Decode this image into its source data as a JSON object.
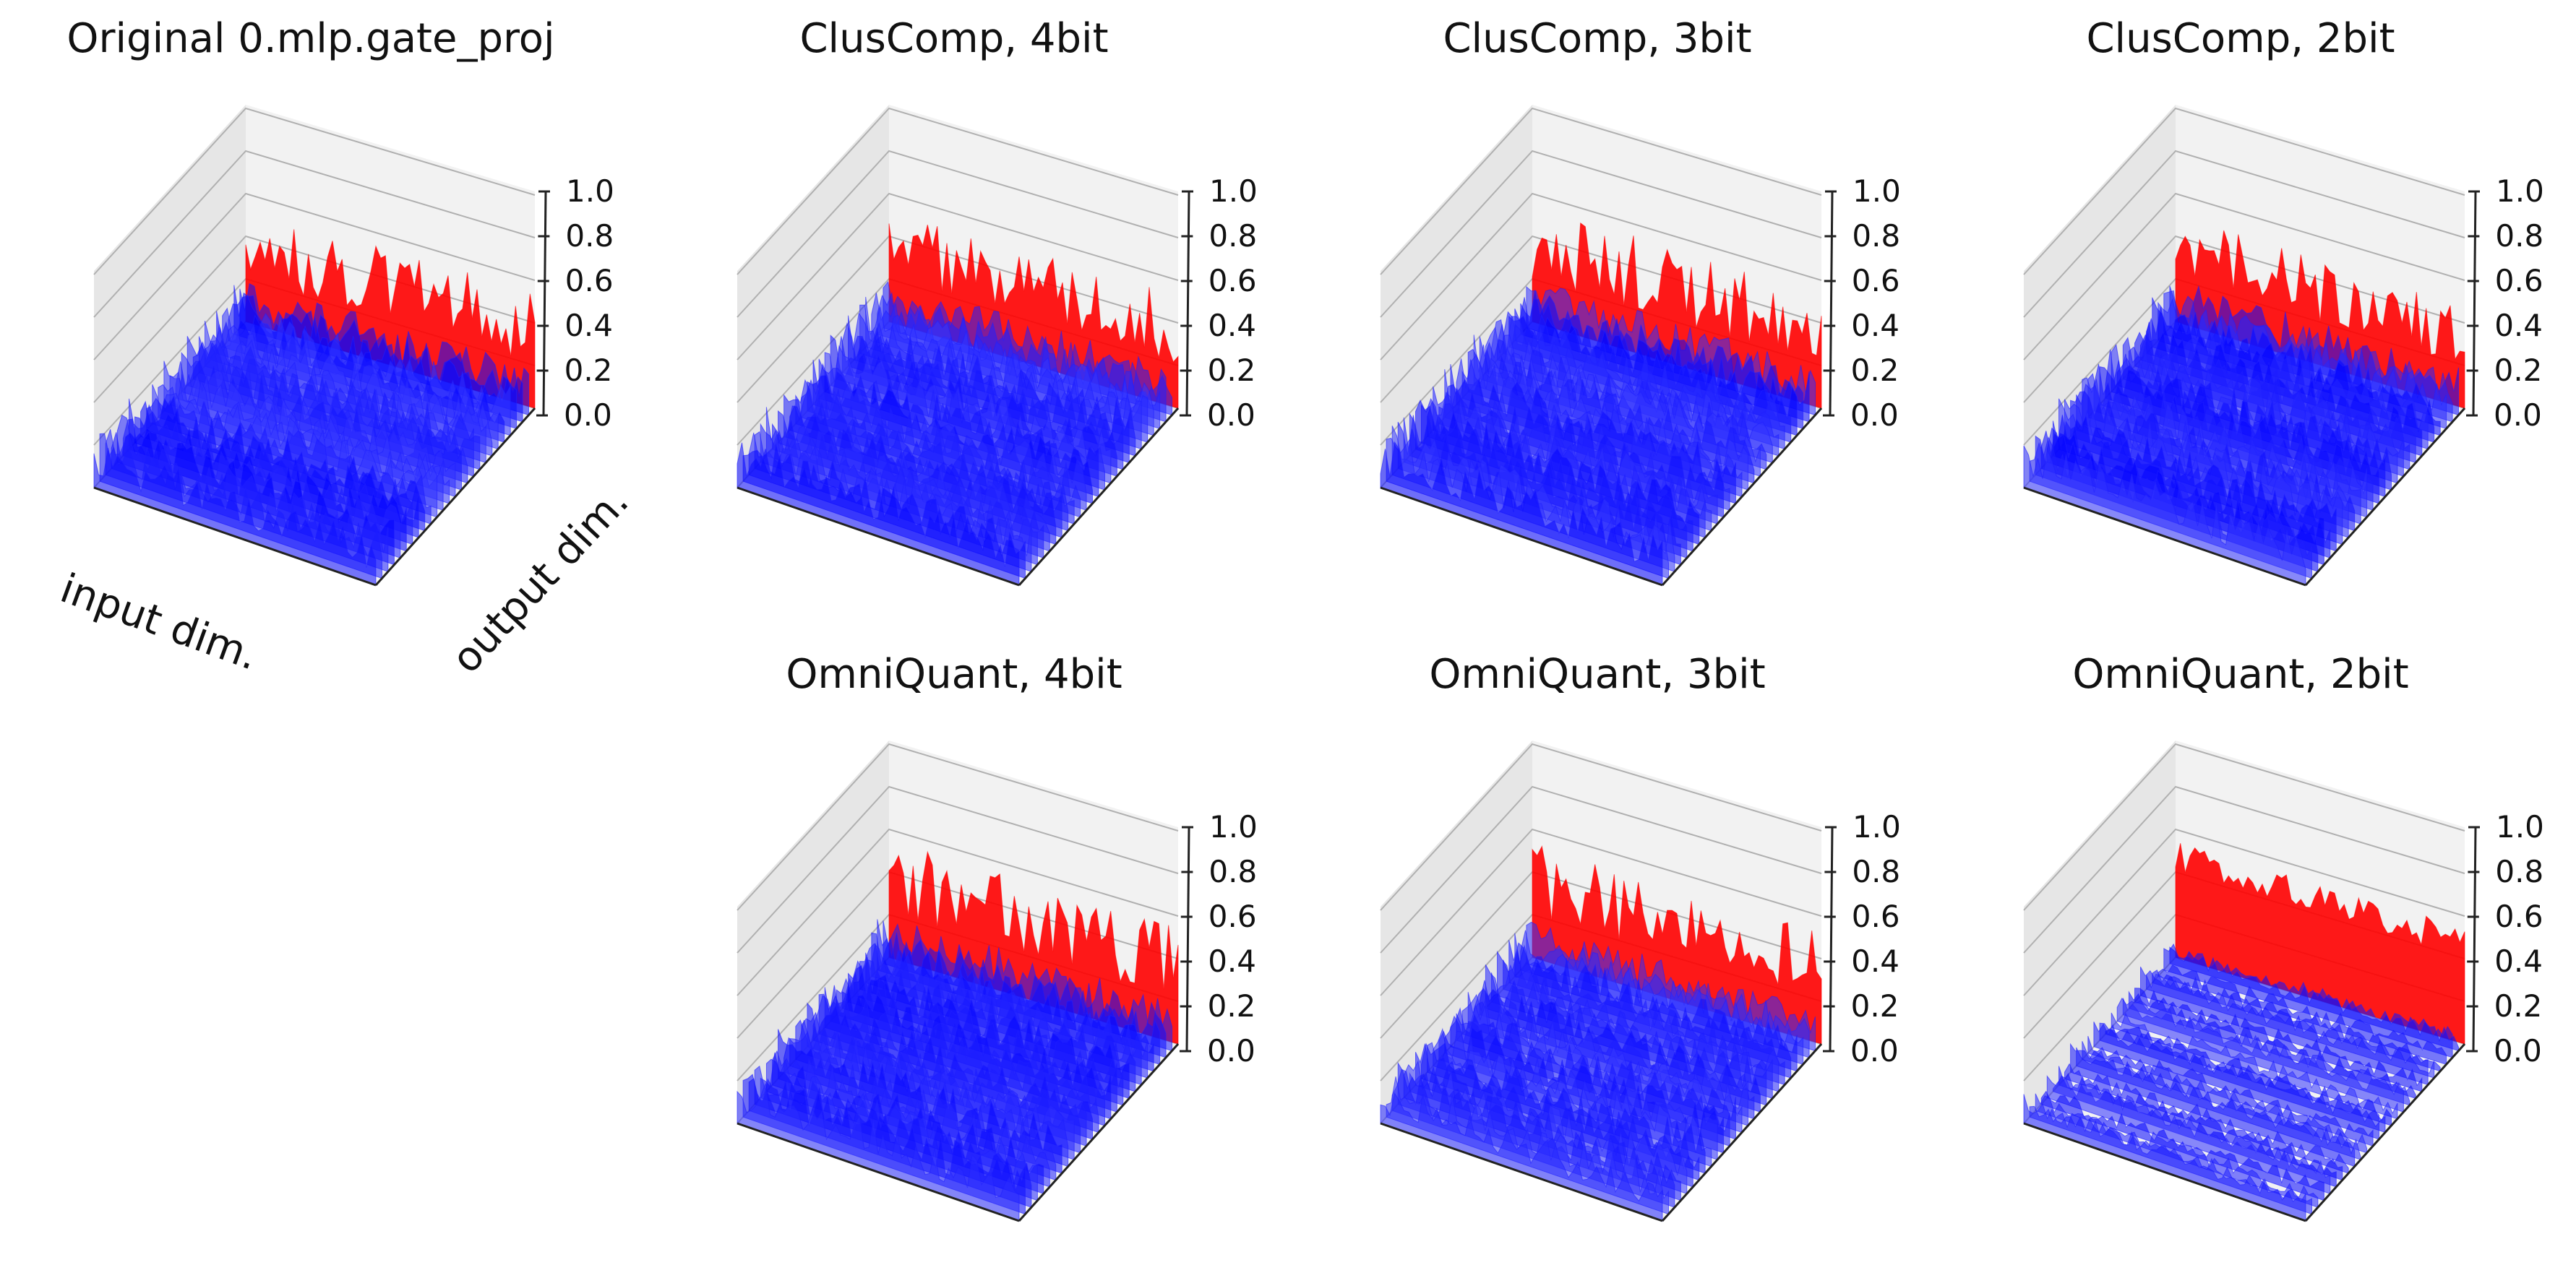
{
  "figure": {
    "colors": {
      "surface_low": "#0000ff",
      "surface_high": "#ff0000",
      "pane": "#f2f2f2",
      "pane_side": "#e6e6e6",
      "grid": "#b0b0b0"
    },
    "z_axis": {
      "range": [
        0.0,
        1.0
      ],
      "tick_labels": [
        "0.0",
        "0.2",
        "0.4",
        "0.6",
        "0.8",
        "1.0"
      ]
    },
    "axis_labels": {
      "x": "input dim.",
      "y": "output dim."
    }
  },
  "chart_data": [
    {
      "type": "surface3d",
      "title": "Original 0.mlp.gate_proj",
      "zlim": [
        0,
        1
      ],
      "zticks": [
        0.0,
        0.2,
        0.4,
        0.6,
        0.8,
        1.0
      ],
      "baseline_level": 0.15,
      "back_row_peak": 0.55,
      "noise": 0.09,
      "stripes": false,
      "xlabel": "input dim.",
      "ylabel": "output dim."
    },
    {
      "type": "surface3d",
      "title": "ClusComp, 4bit",
      "zlim": [
        0,
        1
      ],
      "zticks": [
        0.0,
        0.2,
        0.4,
        0.6,
        0.8,
        1.0
      ],
      "baseline_level": 0.15,
      "back_row_peak": 0.55,
      "noise": 0.09,
      "stripes": false
    },
    {
      "type": "surface3d",
      "title": "ClusComp, 3bit",
      "zlim": [
        0,
        1
      ],
      "zticks": [
        0.0,
        0.2,
        0.4,
        0.6,
        0.8,
        1.0
      ],
      "baseline_level": 0.15,
      "back_row_peak": 0.55,
      "noise": 0.09,
      "stripes": false
    },
    {
      "type": "surface3d",
      "title": "ClusComp, 2bit",
      "zlim": [
        0,
        1
      ],
      "zticks": [
        0.0,
        0.2,
        0.4,
        0.6,
        0.8,
        1.0
      ],
      "baseline_level": 0.15,
      "back_row_peak": 0.5,
      "noise": 0.09,
      "stripes": false
    },
    {
      "type": "surface3d",
      "title": "OmniQuant, 4bit",
      "zlim": [
        0,
        1
      ],
      "zticks": [
        0.0,
        0.2,
        0.4,
        0.6,
        0.8,
        1.0
      ],
      "baseline_level": 0.15,
      "back_row_peak": 0.55,
      "noise": 0.09,
      "stripes": false
    },
    {
      "type": "surface3d",
      "title": "OmniQuant, 3bit",
      "zlim": [
        0,
        1
      ],
      "zticks": [
        0.0,
        0.2,
        0.4,
        0.6,
        0.8,
        1.0
      ],
      "baseline_level": 0.13,
      "back_row_peak": 0.55,
      "noise": 0.08,
      "stripes": false
    },
    {
      "type": "surface3d",
      "title": "OmniQuant, 2bit",
      "zlim": [
        0,
        1
      ],
      "zticks": [
        0.0,
        0.2,
        0.4,
        0.6,
        0.8,
        1.0
      ],
      "baseline_level": 0.05,
      "back_row_peak": 0.5,
      "noise": 0.04,
      "stripes": true
    }
  ]
}
